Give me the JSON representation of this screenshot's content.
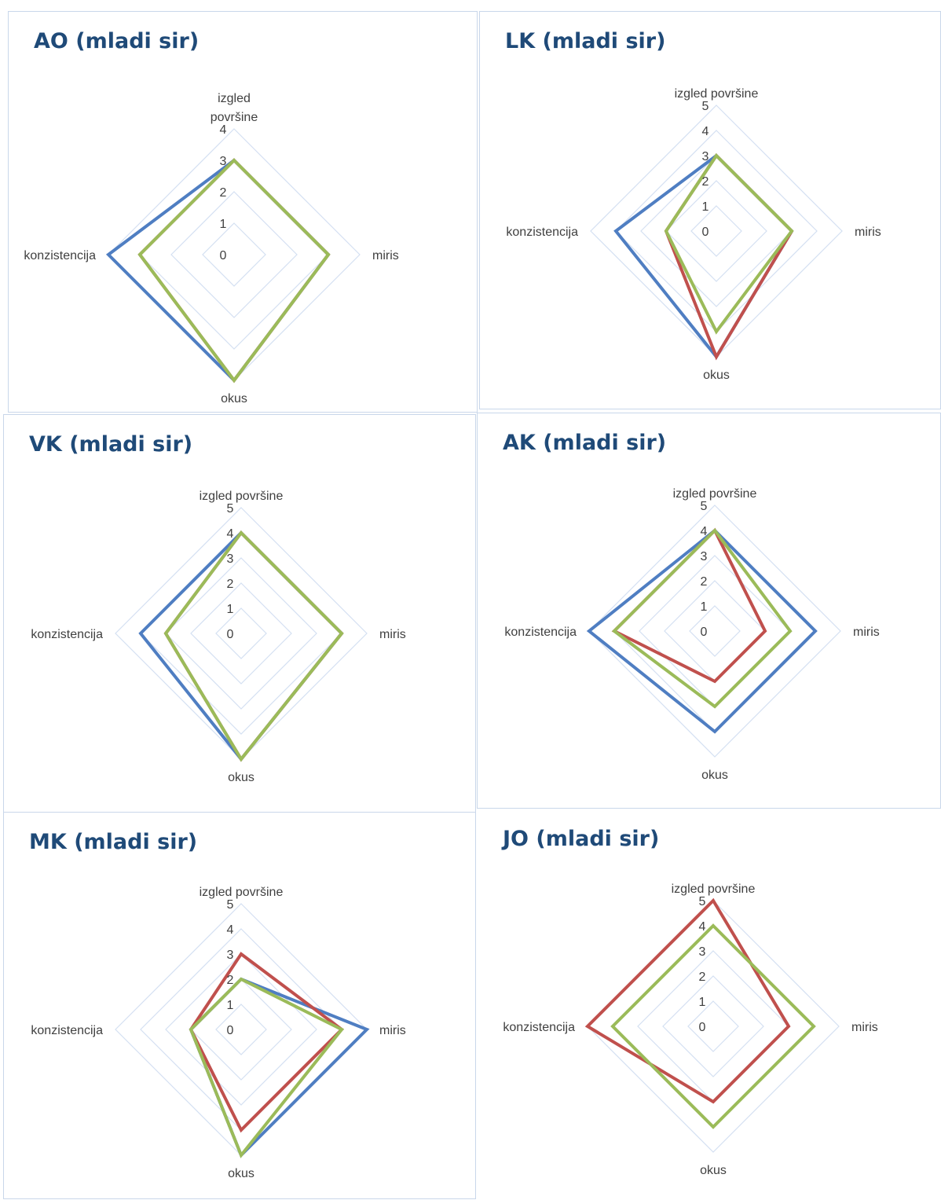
{
  "colors": {
    "series_1": "#4f7ec2",
    "series_2": "#c0504d",
    "series_3": "#9bbb59",
    "grid": "#d4e0f2",
    "title": "#1f4a78",
    "label": "#404040"
  },
  "chart_data": [
    {
      "type": "radar",
      "title": "AO (mladi sir)",
      "axes": [
        "izgled površine",
        "miris",
        "okus",
        "konzistencija"
      ],
      "axis_label_lines": [
        [
          "izgled",
          "površine"
        ],
        [
          "miris"
        ],
        [
          "okus"
        ],
        [
          "konzistencija"
        ]
      ],
      "ticks": [
        "0",
        "1",
        "2",
        "3",
        "4"
      ],
      "rmax": 4,
      "grid": true,
      "series": [
        {
          "color": "#4f7ec2",
          "values": [
            3,
            3,
            4,
            4
          ]
        },
        {
          "color": "#c0504d",
          "values": [
            3,
            3,
            4,
            3
          ]
        },
        {
          "color": "#9bbb59",
          "values": [
            3,
            3,
            4,
            3
          ]
        }
      ]
    },
    {
      "type": "radar",
      "title": "LK (mladi sir)",
      "axes": [
        "izgled površine",
        "miris",
        "okus",
        "konzistencija"
      ],
      "axis_label_lines": [
        [
          "izgled površine"
        ],
        [
          "miris"
        ],
        [
          "okus"
        ],
        [
          "konzistencija"
        ]
      ],
      "ticks": [
        "0",
        "1",
        "2",
        "3",
        "4",
        "5"
      ],
      "rmax": 5,
      "grid": true,
      "series": [
        {
          "color": "#4f7ec2",
          "values": [
            3,
            3,
            5,
            4
          ]
        },
        {
          "color": "#c0504d",
          "values": [
            3,
            3,
            5,
            2
          ]
        },
        {
          "color": "#9bbb59",
          "values": [
            3,
            3,
            4,
            2
          ]
        }
      ]
    },
    {
      "type": "radar",
      "title": "VK (mladi sir)",
      "axes": [
        "izgled površine",
        "miris",
        "okus",
        "konzistencija"
      ],
      "axis_label_lines": [
        [
          "izgled površine"
        ],
        [
          "miris"
        ],
        [
          "okus"
        ],
        [
          "konzistencija"
        ]
      ],
      "ticks": [
        "0",
        "1",
        "2",
        "3",
        "4",
        "5"
      ],
      "rmax": 5,
      "grid": true,
      "series": [
        {
          "color": "#4f7ec2",
          "values": [
            4,
            4,
            5,
            4
          ]
        },
        {
          "color": "#c0504d",
          "values": [
            4,
            4,
            5,
            3
          ]
        },
        {
          "color": "#9bbb59",
          "values": [
            4,
            4,
            5,
            3
          ]
        }
      ]
    },
    {
      "type": "radar",
      "title": "AK (mladi sir)",
      "axes": [
        "izgled površine",
        "miris",
        "okus",
        "konzistencija"
      ],
      "axis_label_lines": [
        [
          "izgled površine"
        ],
        [
          "miris"
        ],
        [
          "okus"
        ],
        [
          "konzistencija"
        ]
      ],
      "ticks": [
        "0",
        "1",
        "2",
        "3",
        "4",
        "5"
      ],
      "rmax": 5,
      "grid": true,
      "series": [
        {
          "color": "#4f7ec2",
          "values": [
            4,
            4,
            4,
            5
          ]
        },
        {
          "color": "#c0504d",
          "values": [
            4,
            2,
            2,
            4
          ]
        },
        {
          "color": "#9bbb59",
          "values": [
            4,
            3,
            3,
            4
          ]
        }
      ]
    },
    {
      "type": "radar",
      "title": "MK (mladi sir)",
      "axes": [
        "izgled površine",
        "miris",
        "okus",
        "konzistencija"
      ],
      "axis_label_lines": [
        [
          "izgled površine"
        ],
        [
          "miris"
        ],
        [
          "okus"
        ],
        [
          "konzistencija"
        ]
      ],
      "ticks": [
        "0",
        "1",
        "2",
        "3",
        "4",
        "5"
      ],
      "rmax": 5,
      "grid": true,
      "series": [
        {
          "color": "#4f7ec2",
          "values": [
            2,
            5,
            5,
            2
          ]
        },
        {
          "color": "#c0504d",
          "values": [
            3,
            4,
            4,
            2
          ]
        },
        {
          "color": "#9bbb59",
          "values": [
            2,
            4,
            5,
            2
          ]
        }
      ]
    },
    {
      "type": "radar",
      "title": "JO (mladi sir)",
      "axes": [
        "izgled površine",
        "miris",
        "okus",
        "konzistencija"
      ],
      "axis_label_lines": [
        [
          "izgled površine"
        ],
        [
          "miris"
        ],
        [
          "okus"
        ],
        [
          "konzistencija"
        ]
      ],
      "ticks": [
        "0",
        "1",
        "2",
        "3",
        "4",
        "5"
      ],
      "rmax": 5,
      "grid": true,
      "series": [
        {
          "color": "#c0504d",
          "values": [
            5,
            3,
            3,
            5
          ]
        },
        {
          "color": "#9bbb59",
          "values": [
            4,
            4,
            4,
            4
          ]
        }
      ]
    }
  ]
}
